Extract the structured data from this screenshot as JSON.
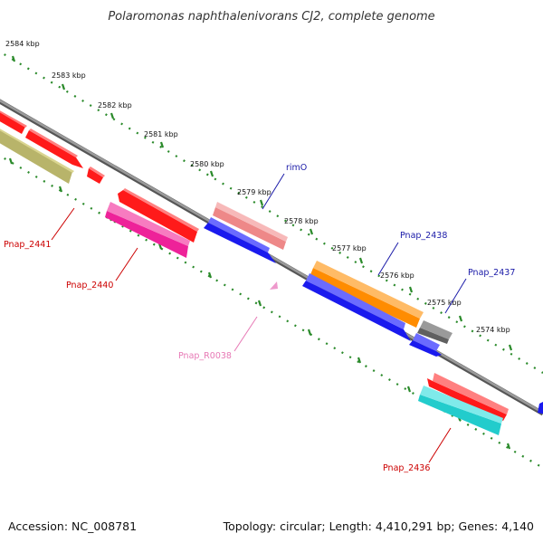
{
  "title": "Polaromonas naphthalenivorans CJ2, complete genome",
  "footer": {
    "accession": "Accession: NC_008781",
    "topology": "Topology: circular; Length: 4,410,291 bp; Genes: 4,140"
  },
  "colors": {
    "backbone": "#888888",
    "ticks": "#2a8a2a",
    "label_forward": "#1a1aa8",
    "label_reverse": "#cc0000",
    "label_rna": "#e779b5"
  },
  "kbp_labels": [
    "2584 kbp",
    "2583 kbp",
    "2582 kbp",
    "2581 kbp",
    "2580 kbp",
    "2579 kbp",
    "2578 kbp",
    "2577 kbp",
    "2576 kbp",
    "2575 kbp",
    "2574 kbp"
  ],
  "gene_labels": {
    "rimO": "rimO",
    "pnap_2438": "Pnap_2438",
    "pnap_2437": "Pnap_2437",
    "pnap_2441": "Pnap_2441",
    "pnap_2440": "Pnap_2440",
    "pnap_r0038": "Pnap_R0038",
    "pnap_2436": "Pnap_2436"
  },
  "feature_colors": {
    "red": "#ff1a1a",
    "olive": "#b8b46a",
    "salmon": "#ee8888",
    "blue": "#1a1aee",
    "pink": "#ee2299",
    "orange": "#ff8c00",
    "gray": "#606060",
    "cyan": "#22cccc",
    "lightpink": "#ee99cc"
  }
}
